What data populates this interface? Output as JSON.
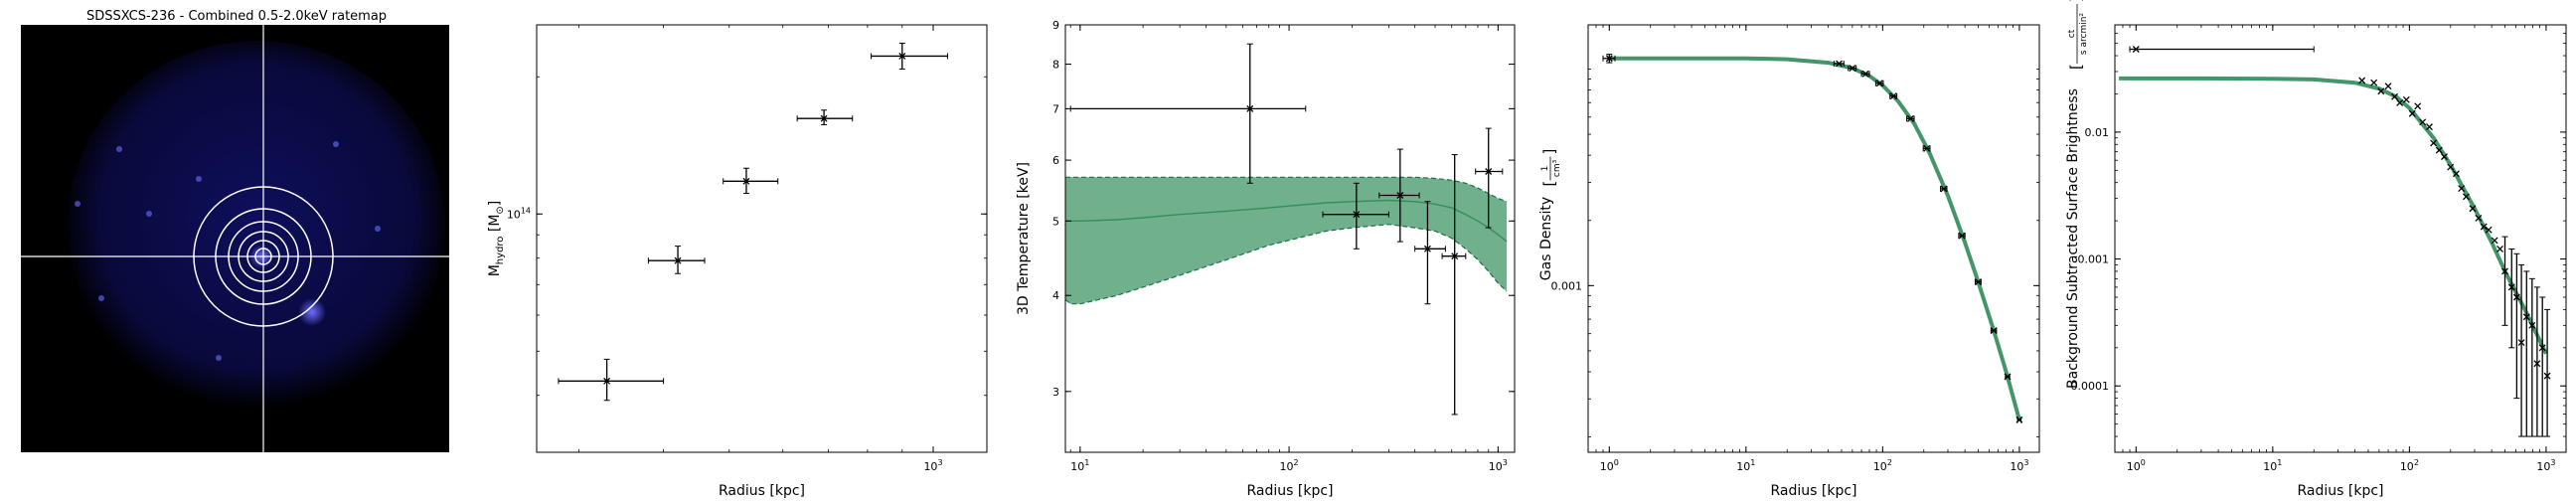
{
  "ratemap": {
    "title": "SDSSXCS-236 - Combined 0.5-2.0keV ratemap",
    "background": "#000000",
    "emission_color": "#1a1aa8",
    "source_color": "#6e6eff",
    "crosshair_color": "#ffffff",
    "annuli_count": 6
  },
  "chart_data": [
    {
      "id": "mass",
      "type": "scatter",
      "title": "",
      "xlabel": "Radius [kpc]",
      "ylabel": "M",
      "ylabel_sub": "hydro",
      "ylabel_unit": "[M",
      "ylabel_unit_sub": "⊙",
      "ylabel_unit_end": "]",
      "xscale": "log",
      "yscale": "log",
      "xlim": [
        260,
        1200
      ],
      "ylim": [
        30000000000000.0,
        260000000000000.0
      ],
      "x_ticks": [
        {
          "value": 1000,
          "label": "10",
          "sup": "3"
        }
      ],
      "y_ticks": [
        {
          "value": 100000000000000.0,
          "label": "10",
          "sup": "14"
        }
      ],
      "series": [
        {
          "points": [
            {
              "x": 330,
              "xlo": 280,
              "xhi": 400,
              "y": 43000000000000.0,
              "ylo": 39000000000000.0,
              "yhi": 48000000000000.0
            },
            {
              "x": 420,
              "xlo": 380,
              "xhi": 460,
              "y": 79000000000000.0,
              "ylo": 74000000000000.0,
              "yhi": 85000000000000.0
            },
            {
              "x": 530,
              "xlo": 490,
              "xhi": 590,
              "y": 118000000000000.0,
              "ylo": 111000000000000.0,
              "yhi": 126000000000000.0
            },
            {
              "x": 690,
              "xlo": 630,
              "xhi": 760,
              "y": 162000000000000.0,
              "ylo": 157000000000000.0,
              "yhi": 169000000000000.0
            },
            {
              "x": 900,
              "xlo": 810,
              "xhi": 1050,
              "y": 222000000000000.0,
              "ylo": 208000000000000.0,
              "yhi": 237000000000000.0
            }
          ]
        }
      ]
    },
    {
      "id": "temperature",
      "type": "line",
      "title": "",
      "xlabel": "Radius [kpc]",
      "ylabel": "3D Temperature [keV]",
      "xscale": "log",
      "yscale": "log",
      "xlim": [
        8.5,
        1200
      ],
      "ylim": [
        2.5,
        9.0
      ],
      "x_ticks": [
        {
          "value": 10,
          "label": "10",
          "sup": "1"
        },
        {
          "value": 100,
          "label": "10",
          "sup": "2"
        },
        {
          "value": 1000,
          "label": "10",
          "sup": "3"
        }
      ],
      "y_ticks": [
        {
          "value": 3,
          "label": "3"
        },
        {
          "value": 4,
          "label": "4"
        },
        {
          "value": 5,
          "label": "5"
        },
        {
          "value": 6,
          "label": "6"
        },
        {
          "value": 7,
          "label": "7"
        },
        {
          "value": 8,
          "label": "8"
        },
        {
          "value": 9,
          "label": "9"
        }
      ],
      "fill_color": "#2e8b57",
      "line_color": "#2e8b57",
      "model": {
        "x": [
          8.5,
          9,
          10,
          15,
          20,
          30,
          50,
          80,
          100,
          150,
          200,
          300,
          400,
          500,
          600,
          700,
          800,
          900,
          1000,
          1100
        ],
        "mid": [
          5.0,
          5.0,
          5.0,
          5.02,
          5.05,
          5.1,
          5.15,
          5.2,
          5.23,
          5.28,
          5.3,
          5.32,
          5.3,
          5.26,
          5.2,
          5.1,
          5.0,
          4.9,
          4.8,
          4.7
        ],
        "lo": [
          3.95,
          3.9,
          3.9,
          4.0,
          4.1,
          4.25,
          4.45,
          4.65,
          4.72,
          4.85,
          4.9,
          4.95,
          4.9,
          4.85,
          4.75,
          4.6,
          4.45,
          4.3,
          4.15,
          4.05
        ],
        "hi": [
          5.7,
          5.7,
          5.7,
          5.7,
          5.7,
          5.7,
          5.7,
          5.7,
          5.7,
          5.7,
          5.7,
          5.7,
          5.7,
          5.68,
          5.65,
          5.6,
          5.52,
          5.43,
          5.35,
          5.3
        ]
      },
      "series": [
        {
          "points": [
            {
              "x": 65,
              "xlo": 9,
              "xhi": 120,
              "y": 7.0,
              "ylo": 5.6,
              "yhi": 8.5
            },
            {
              "x": 210,
              "xlo": 145,
              "xhi": 300,
              "y": 5.1,
              "ylo": 4.6,
              "yhi": 5.6
            },
            {
              "x": 340,
              "xlo": 270,
              "xhi": 420,
              "y": 5.4,
              "ylo": 4.7,
              "yhi": 6.2
            },
            {
              "x": 460,
              "xlo": 400,
              "xhi": 560,
              "y": 4.6,
              "ylo": 3.9,
              "yhi": 5.3
            },
            {
              "x": 620,
              "xlo": 540,
              "xhi": 700,
              "y": 4.5,
              "ylo": 2.8,
              "yhi": 6.1
            },
            {
              "x": 900,
              "xlo": 780,
              "xhi": 1050,
              "y": 5.8,
              "ylo": 4.9,
              "yhi": 6.6
            }
          ]
        }
      ]
    },
    {
      "id": "density",
      "type": "line",
      "title": "",
      "xlabel": "Radius [kpc]",
      "ylabel": "Gas Density",
      "ylabel_unit_num": "1",
      "ylabel_unit_den": "cm³",
      "xscale": "log",
      "yscale": "log",
      "xlim": [
        0.7,
        1400
      ],
      "ylim": [
        0.00017,
        0.016
      ],
      "x_ticks": [
        {
          "value": 1,
          "label": "10",
          "sup": "0"
        },
        {
          "value": 10,
          "label": "10",
          "sup": "1"
        },
        {
          "value": 100,
          "label": "10",
          "sup": "2"
        },
        {
          "value": 1000,
          "label": "10",
          "sup": "3"
        }
      ],
      "y_ticks": [
        {
          "value": 0.001,
          "label": "0.001"
        }
      ],
      "line_color": "#2e8b57",
      "model": {
        "x": [
          1,
          3,
          10,
          20,
          40,
          60,
          80,
          100,
          130,
          170,
          220,
          300,
          400,
          500,
          650,
          800,
          1000
        ],
        "y": [
          0.0112,
          0.0112,
          0.0112,
          0.0111,
          0.0107,
          0.0101,
          0.0093,
          0.0084,
          0.0071,
          0.0056,
          0.0041,
          0.0026,
          0.00158,
          0.00104,
          0.00062,
          0.0004,
          0.00024
        ]
      },
      "series": [
        {
          "points": [
            {
              "x": 1.0,
              "xlo": 0.9,
              "xhi": 1.1,
              "y": 0.0112,
              "ylo": 0.0107,
              "yhi": 0.0117
            },
            {
              "x": 48,
              "xlo": 44,
              "xhi": 52,
              "y": 0.0106
            },
            {
              "x": 60,
              "xlo": 56,
              "xhi": 64,
              "y": 0.0101
            },
            {
              "x": 75,
              "xlo": 70,
              "xhi": 80,
              "y": 0.0095
            },
            {
              "x": 95,
              "xlo": 89,
              "xhi": 101,
              "y": 0.0086
            },
            {
              "x": 120,
              "xlo": 113,
              "xhi": 127,
              "y": 0.0075
            },
            {
              "x": 160,
              "xlo": 150,
              "xhi": 170,
              "y": 0.0059
            },
            {
              "x": 210,
              "xlo": 198,
              "xhi": 222,
              "y": 0.0043
            },
            {
              "x": 280,
              "xlo": 265,
              "xhi": 295,
              "y": 0.0028
            },
            {
              "x": 380,
              "xlo": 360,
              "xhi": 400,
              "y": 0.0017
            },
            {
              "x": 500,
              "xlo": 475,
              "xhi": 525,
              "y": 0.00104
            },
            {
              "x": 650,
              "xlo": 620,
              "xhi": 680,
              "y": 0.00062
            },
            {
              "x": 820,
              "xlo": 790,
              "xhi": 850,
              "y": 0.00038
            },
            {
              "x": 1000,
              "xlo": 970,
              "xhi": 1030,
              "y": 0.00024
            }
          ]
        }
      ]
    },
    {
      "id": "surface-brightness",
      "type": "scatter",
      "title": "",
      "xlabel": "Radius [kpc]",
      "ylabel": "Background Subtracted Surface Brightness",
      "ylabel_unit_num": "ct",
      "ylabel_unit_den": "s arcmin²",
      "xscale": "log",
      "yscale": "log",
      "xlim": [
        0.7,
        1400
      ],
      "ylim": [
        3e-05,
        0.07
      ],
      "x_ticks": [
        {
          "value": 1,
          "label": "10",
          "sup": "0"
        },
        {
          "value": 10,
          "label": "10",
          "sup": "1"
        },
        {
          "value": 100,
          "label": "10",
          "sup": "2"
        },
        {
          "value": 1000,
          "label": "10",
          "sup": "3"
        }
      ],
      "y_ticks": [
        {
          "value": 0.0001,
          "label": "0.0001"
        },
        {
          "value": 0.001,
          "label": "0.001"
        },
        {
          "value": 0.01,
          "label": "0.01"
        }
      ],
      "line_color": "#2e8b57",
      "model": {
        "x": [
          0.75,
          1,
          3,
          10,
          20,
          40,
          60,
          80,
          100,
          150,
          200,
          300,
          400,
          500,
          700,
          1000
        ],
        "y": [
          0.0265,
          0.0265,
          0.0265,
          0.0263,
          0.026,
          0.0245,
          0.022,
          0.019,
          0.0155,
          0.009,
          0.0055,
          0.0025,
          0.00135,
          0.0008,
          0.0004,
          0.00018
        ]
      },
      "series": [
        {
          "points": [
            {
              "x": 1.0,
              "xlo": 0.9,
              "xhi": 20,
              "y": 0.045
            },
            {
              "x": 45,
              "y": 0.0255
            },
            {
              "x": 55,
              "y": 0.0245
            },
            {
              "x": 62,
              "y": 0.021
            },
            {
              "x": 70,
              "y": 0.023
            },
            {
              "x": 78,
              "y": 0.019
            },
            {
              "x": 85,
              "y": 0.017
            },
            {
              "x": 95,
              "y": 0.018
            },
            {
              "x": 105,
              "y": 0.014
            },
            {
              "x": 115,
              "y": 0.016
            },
            {
              "x": 125,
              "y": 0.012
            },
            {
              "x": 140,
              "y": 0.011
            },
            {
              "x": 150,
              "y": 0.0082
            },
            {
              "x": 165,
              "y": 0.0072
            },
            {
              "x": 180,
              "y": 0.0064
            },
            {
              "x": 200,
              "y": 0.0053
            },
            {
              "x": 220,
              "y": 0.0047
            },
            {
              "x": 240,
              "y": 0.0036
            },
            {
              "x": 260,
              "y": 0.0031
            },
            {
              "x": 290,
              "y": 0.0025
            },
            {
              "x": 320,
              "y": 0.0021
            },
            {
              "x": 350,
              "y": 0.0018
            },
            {
              "x": 380,
              "y": 0.0017
            },
            {
              "x": 420,
              "y": 0.0014
            },
            {
              "x": 460,
              "y": 0.0012
            },
            {
              "x": 500,
              "y": 0.0008,
              "ylo": 0.0003,
              "yhi": 0.0015
            },
            {
              "x": 560,
              "y": 0.0006,
              "ylo": 0.0002,
              "yhi": 0.0012
            },
            {
              "x": 610,
              "y": 0.0005,
              "ylo": 8e-05,
              "yhi": 0.0011
            },
            {
              "x": 660,
              "y": 0.00022,
              "ylo": 4e-05,
              "yhi": 0.0009
            },
            {
              "x": 720,
              "y": 0.00035,
              "ylo": 4e-05,
              "yhi": 0.0008
            },
            {
              "x": 790,
              "y": 0.0003,
              "ylo": 4e-05,
              "yhi": 0.0007
            },
            {
              "x": 860,
              "y": 0.00015,
              "ylo": 4e-05,
              "yhi": 0.0006
            },
            {
              "x": 940,
              "y": 0.0002,
              "ylo": 4e-05,
              "yhi": 0.0005
            },
            {
              "x": 1020,
              "y": 0.00012,
              "ylo": 4e-05,
              "yhi": 0.0004
            }
          ]
        }
      ]
    }
  ]
}
